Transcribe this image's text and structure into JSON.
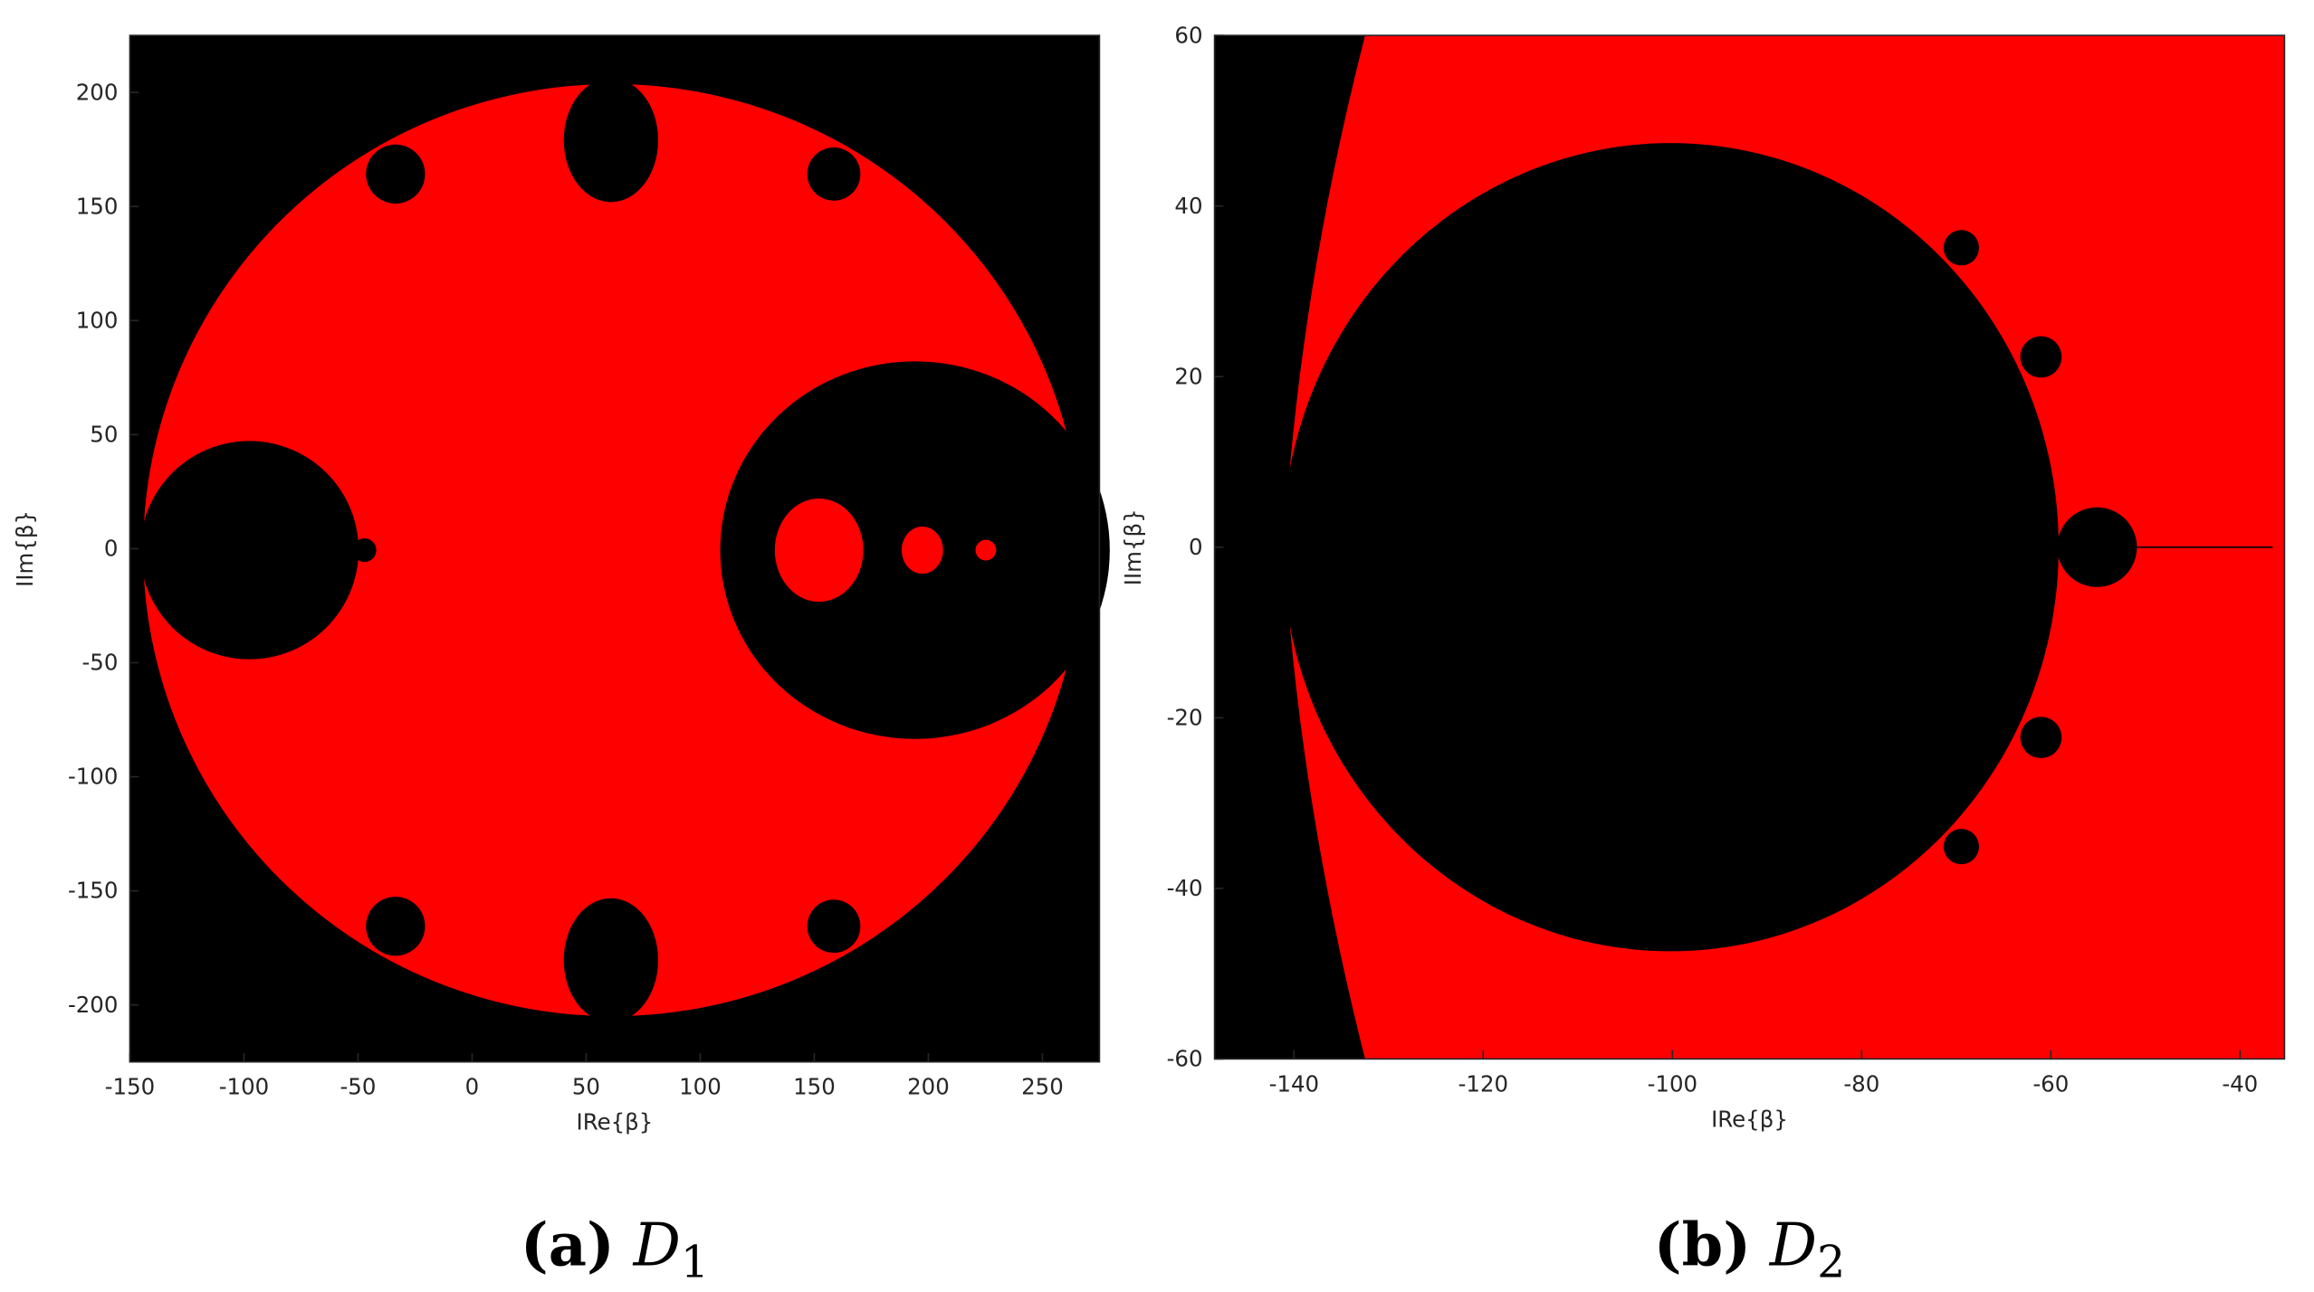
{
  "chart_data": [
    {
      "type": "image",
      "xlabel": "IRe{β}",
      "ylabel": "IIm{β}",
      "xlim": [
        -150,
        275
      ],
      "ylim": [
        -225,
        225
      ],
      "xticks": [
        -150,
        -100,
        -50,
        0,
        50,
        100,
        150,
        200,
        250
      ],
      "yticks": [
        -200,
        -150,
        -100,
        -50,
        0,
        50,
        100,
        150,
        200
      ],
      "caption": {
        "label": "(a)",
        "symbol": "D",
        "subscript": "1"
      }
    },
    {
      "type": "image",
      "xlabel": "IRe{β}",
      "ylabel": "IIm{β}",
      "xlim": [
        -148.4,
        -35.3
      ],
      "ylim": [
        -60,
        60
      ],
      "xticks": [
        -140,
        -120,
        -100,
        -80,
        -60,
        -40
      ],
      "yticks": [
        -60,
        -40,
        -20,
        0,
        20,
        40,
        60
      ],
      "caption": {
        "label": "(b)",
        "symbol": "D",
        "subscript": "2"
      }
    }
  ]
}
